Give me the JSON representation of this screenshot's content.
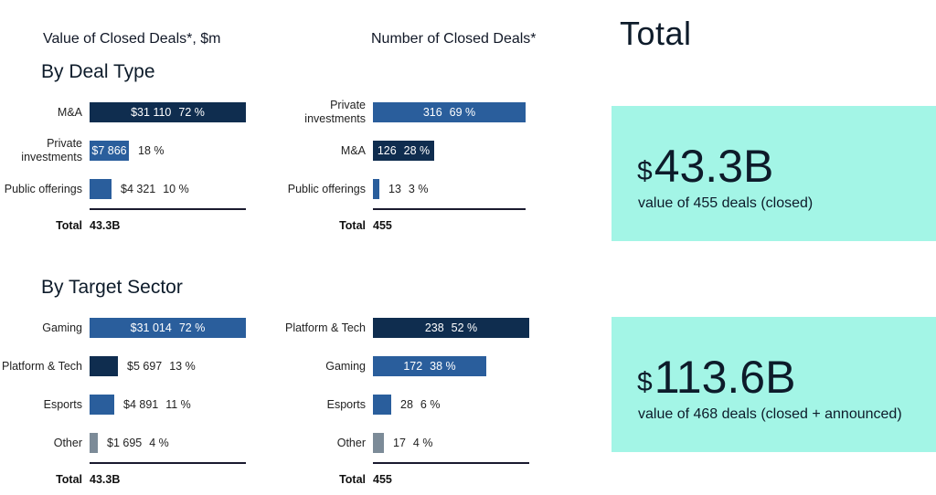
{
  "header": {
    "value_column_title": "Value of Closed Deals*, $m",
    "count_column_title": "Number of Closed Deals*",
    "total_title": "Total"
  },
  "sections": {
    "deal_type_title": "By Deal Type",
    "target_sector_title": "By Target Sector"
  },
  "colors": {
    "navy": "#0f2d4f",
    "blue": "#2a5e9c",
    "gray": "#7c8b98",
    "card": "#a3f5e6"
  },
  "chart_data": [
    {
      "type": "bar",
      "id": "deal_type_value",
      "title": "Value of Closed Deals*, $m",
      "section": "By Deal Type",
      "unit": "$m",
      "xlim": [
        0,
        31110
      ],
      "bars": [
        {
          "category": "M&A",
          "value": 31110,
          "value_label": "$31 110",
          "pct_label": "72 %",
          "color": "navy",
          "label_inside": true
        },
        {
          "category": "Private investments",
          "value": 7866,
          "value_label": "$7 866",
          "pct_label": "18 %",
          "color": "blue",
          "label_inside": true
        },
        {
          "category": "Public offerings",
          "value": 4321,
          "value_label": "$4 321",
          "pct_label": "10 %",
          "color": "blue",
          "label_inside": false
        }
      ],
      "total_label": "Total",
      "total_value": "43.3B"
    },
    {
      "type": "bar",
      "id": "deal_type_count",
      "title": "Number of Closed Deals*",
      "section": "By Deal Type",
      "xlim": [
        0,
        316
      ],
      "bars": [
        {
          "category": "Private investments",
          "value": 316,
          "value_label": "316",
          "pct_label": "69 %",
          "color": "blue",
          "label_inside": true
        },
        {
          "category": "M&A",
          "value": 126,
          "value_label": "126",
          "pct_label": "28 %",
          "color": "navy",
          "label_inside": true
        },
        {
          "category": "Public offerings",
          "value": 13,
          "value_label": "13",
          "pct_label": "3 %",
          "color": "blue",
          "label_inside": false
        }
      ],
      "total_label": "Total",
      "total_value": "455"
    },
    {
      "type": "bar",
      "id": "sector_value",
      "title": "Value of Closed Deals*, $m",
      "section": "By Target Sector",
      "unit": "$m",
      "xlim": [
        0,
        31014
      ],
      "bars": [
        {
          "category": "Gaming",
          "value": 31014,
          "value_label": "$31 014",
          "pct_label": "72 %",
          "color": "blue",
          "label_inside": true
        },
        {
          "category": "Platform & Tech",
          "value": 5697,
          "value_label": "$5 697",
          "pct_label": "13 %",
          "color": "navy",
          "label_inside": false
        },
        {
          "category": "Esports",
          "value": 4891,
          "value_label": "$4 891",
          "pct_label": "11 %",
          "color": "blue",
          "label_inside": false
        },
        {
          "category": "Other",
          "value": 1695,
          "value_label": "$1 695",
          "pct_label": "4 %",
          "color": "gray",
          "label_inside": false
        }
      ],
      "total_label": "Total",
      "total_value": "43.3B"
    },
    {
      "type": "bar",
      "id": "sector_count",
      "title": "Number of Closed Deals*",
      "section": "By Target Sector",
      "xlim": [
        0,
        238
      ],
      "bars": [
        {
          "category": "Platform & Tech",
          "value": 238,
          "value_label": "238",
          "pct_label": "52 %",
          "color": "navy",
          "label_inside": true
        },
        {
          "category": "Gaming",
          "value": 172,
          "value_label": "172",
          "pct_label": "38 %",
          "color": "blue",
          "label_inside": true
        },
        {
          "category": "Esports",
          "value": 28,
          "value_label": "28",
          "pct_label": "6 %",
          "color": "blue",
          "label_inside": false
        },
        {
          "category": "Other",
          "value": 17,
          "value_label": "17",
          "pct_label": "4 %",
          "color": "gray",
          "label_inside": false
        }
      ],
      "total_label": "Total",
      "total_value": "455"
    }
  ],
  "cards": [
    {
      "currency": "$",
      "amount": "43.3B",
      "caption": "value of 455 deals (closed)"
    },
    {
      "currency": "$",
      "amount": "113.6B",
      "caption": "value of 468 deals (closed + announced)"
    }
  ]
}
